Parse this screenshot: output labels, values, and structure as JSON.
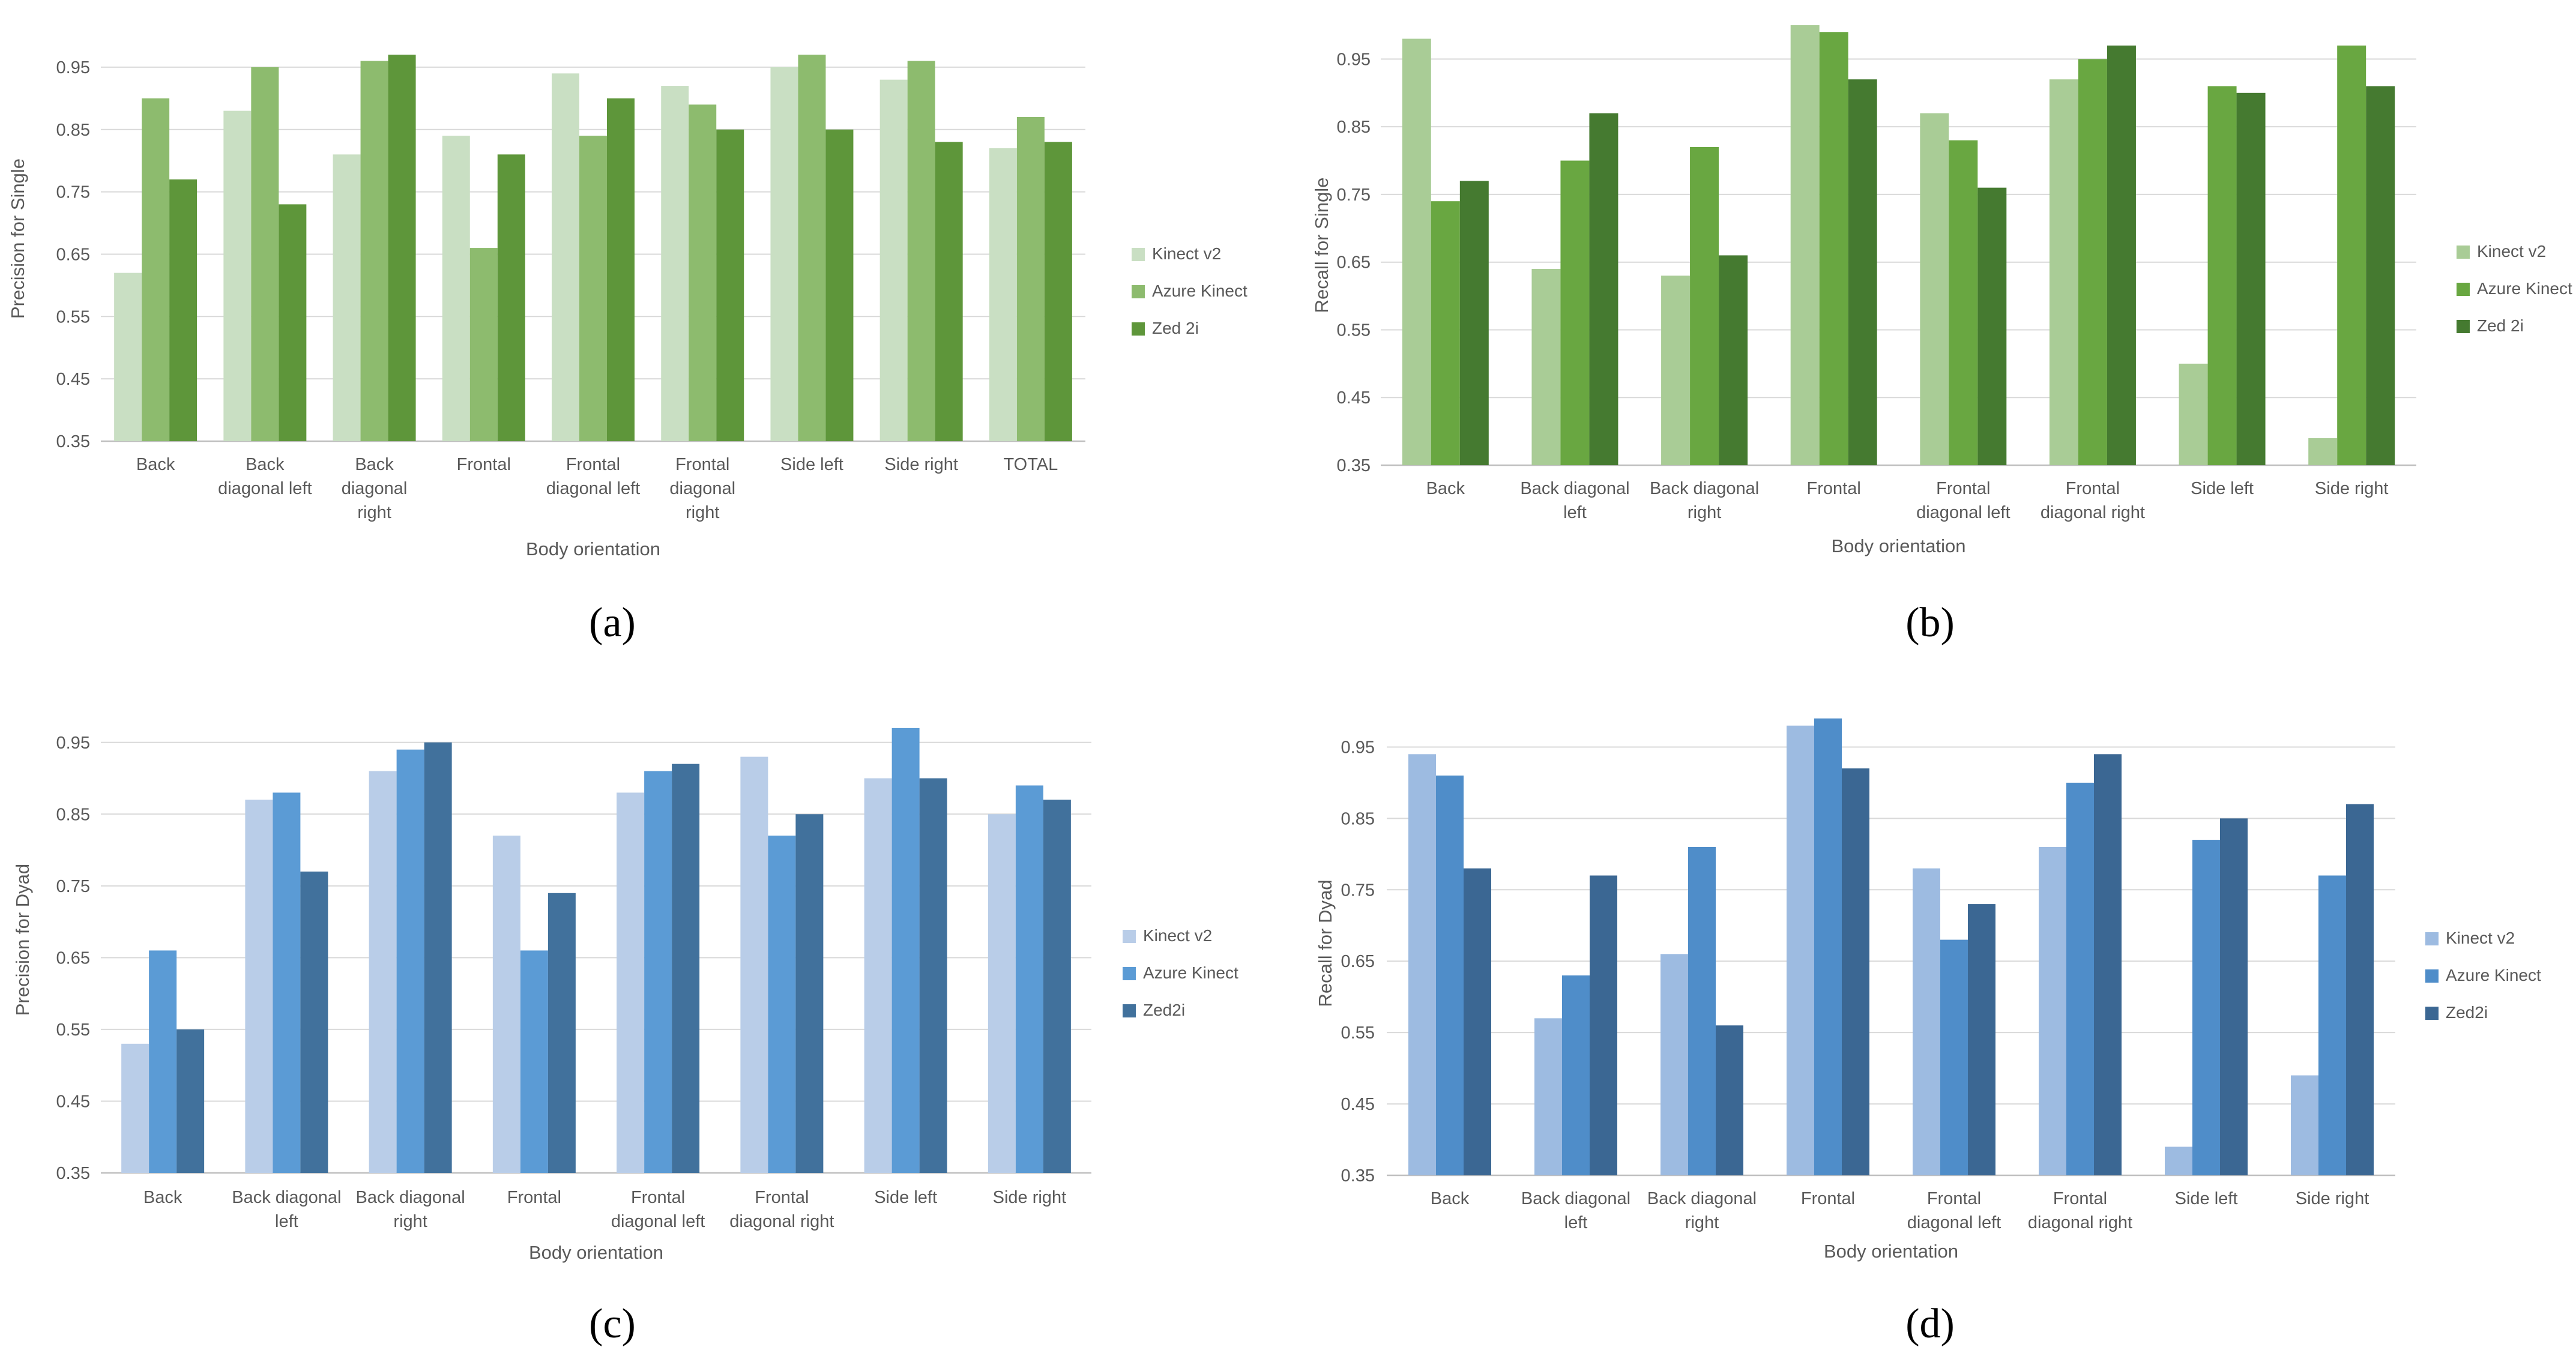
{
  "colors": {
    "green": [
      "#c9dfc3",
      "#8dbb6e",
      "#5e963a"
    ],
    "green_b": [
      "#a9cc96",
      "#69a741",
      "#457a30"
    ],
    "blue": [
      "#b9cde8",
      "#5b9bd5",
      "#41719c"
    ],
    "blue_d": [
      "#9dbbe1",
      "#4f8dc9",
      "#3b6793"
    ],
    "grid": "#d9d9d9",
    "axis": "#bfbfbf"
  },
  "chart_data": [
    {
      "id": "a",
      "type": "bar",
      "panel_label": "(a)",
      "label_letter": "a",
      "title": "",
      "xlabel": "Body orientation",
      "ylabel": "Precision for Single",
      "ylim": [
        0.35,
        1.0
      ],
      "yticks": [
        "0.35",
        "0.45",
        "0.55",
        "0.65",
        "0.75",
        "0.85",
        "0.95"
      ],
      "grid": true,
      "legend_position": "right",
      "palette": "green",
      "categories": [
        [
          "Back"
        ],
        [
          "Back",
          "diagonal left"
        ],
        [
          "Back",
          "diagonal",
          "right"
        ],
        [
          "Frontal"
        ],
        [
          "Frontal",
          "diagonal left"
        ],
        [
          "Frontal",
          "diagonal",
          "right"
        ],
        [
          "Side left"
        ],
        [
          "Side right"
        ],
        [
          "TOTAL"
        ]
      ],
      "series": [
        {
          "name": "Kinect v2",
          "values": [
            0.62,
            0.88,
            0.81,
            0.84,
            0.94,
            0.92,
            0.95,
            0.93,
            0.82
          ]
        },
        {
          "name": "Azure Kinect",
          "values": [
            0.9,
            0.95,
            0.96,
            0.66,
            0.84,
            0.89,
            0.97,
            0.96,
            0.87
          ]
        },
        {
          "name": "Zed 2i",
          "values": [
            0.77,
            0.73,
            0.97,
            0.81,
            0.9,
            0.85,
            0.85,
            0.83,
            0.83
          ]
        }
      ]
    },
    {
      "id": "b",
      "type": "bar",
      "panel_label": "(b)",
      "label_letter": "b",
      "title": "",
      "xlabel": "Body orientation",
      "ylabel": "Recall for Single",
      "ylim": [
        0.35,
        1.0
      ],
      "yticks": [
        "0.35",
        "0.45",
        "0.55",
        "0.65",
        "0.75",
        "0.85",
        "0.95"
      ],
      "grid": true,
      "legend_position": "right",
      "palette": "green_b",
      "categories": [
        [
          "Back"
        ],
        [
          "Back diagonal",
          "left"
        ],
        [
          "Back diagonal",
          "right"
        ],
        [
          "Frontal"
        ],
        [
          "Frontal",
          "diagonal left"
        ],
        [
          "Frontal",
          "diagonal right"
        ],
        [
          "Side left"
        ],
        [
          "Side right"
        ]
      ],
      "series": [
        {
          "name": "Kinect v2",
          "values": [
            0.98,
            0.64,
            0.63,
            1.0,
            0.87,
            0.92,
            0.5,
            0.39
          ]
        },
        {
          "name": "Azure Kinect",
          "values": [
            0.74,
            0.8,
            0.82,
            0.99,
            0.83,
            0.95,
            0.91,
            0.97
          ]
        },
        {
          "name": "Zed 2i",
          "values": [
            0.77,
            0.87,
            0.66,
            0.92,
            0.76,
            0.97,
            0.9,
            0.91
          ]
        }
      ]
    },
    {
      "id": "c",
      "type": "bar",
      "panel_label": "(c)",
      "label_letter": "c",
      "title": "",
      "xlabel": "Body orientation",
      "ylabel": "Precision for Dyad",
      "ylim": [
        0.35,
        1.0
      ],
      "yticks": [
        "0.35",
        "0.45",
        "0.55",
        "0.65",
        "0.75",
        "0.85",
        "0.95"
      ],
      "grid": true,
      "legend_position": "right",
      "palette": "blue",
      "categories": [
        [
          "Back"
        ],
        [
          "Back diagonal",
          "left"
        ],
        [
          "Back diagonal",
          "right"
        ],
        [
          "Frontal"
        ],
        [
          "Frontal",
          "diagonal left"
        ],
        [
          "Frontal",
          "diagonal right"
        ],
        [
          "Side left"
        ],
        [
          "Side right"
        ]
      ],
      "series": [
        {
          "name": "Kinect v2",
          "values": [
            0.53,
            0.87,
            0.91,
            0.82,
            0.88,
            0.93,
            0.9,
            0.85
          ]
        },
        {
          "name": "Azure Kinect",
          "values": [
            0.66,
            0.88,
            0.94,
            0.66,
            0.91,
            0.82,
            0.97,
            0.89
          ]
        },
        {
          "name": "Zed2i",
          "values": [
            0.55,
            0.77,
            0.95,
            0.74,
            0.92,
            0.85,
            0.9,
            0.87
          ]
        }
      ]
    },
    {
      "id": "d",
      "type": "bar",
      "panel_label": "(d)",
      "label_letter": "d",
      "title": "",
      "xlabel": "Body orientation",
      "ylabel": "Recall for Dyad",
      "ylim": [
        0.35,
        1.0
      ],
      "yticks": [
        "0.35",
        "0.45",
        "0.55",
        "0.65",
        "0.75",
        "0.85",
        "0.95"
      ],
      "grid": true,
      "legend_position": "right",
      "palette": "blue_d",
      "categories": [
        [
          "Back"
        ],
        [
          "Back diagonal",
          "left"
        ],
        [
          "Back diagonal",
          "right"
        ],
        [
          "Frontal"
        ],
        [
          "Frontal",
          "diagonal left"
        ],
        [
          "Frontal",
          "diagonal right"
        ],
        [
          "Side left"
        ],
        [
          "Side right"
        ]
      ],
      "series": [
        {
          "name": "Kinect v2",
          "values": [
            0.94,
            0.57,
            0.66,
            0.98,
            0.78,
            0.81,
            0.39,
            0.49
          ]
        },
        {
          "name": "Azure Kinect",
          "values": [
            0.91,
            0.63,
            0.81,
            0.99,
            0.68,
            0.9,
            0.82,
            0.77
          ]
        },
        {
          "name": "Zed2i",
          "values": [
            0.78,
            0.77,
            0.56,
            0.92,
            0.73,
            0.94,
            0.85,
            0.87
          ]
        }
      ]
    }
  ]
}
